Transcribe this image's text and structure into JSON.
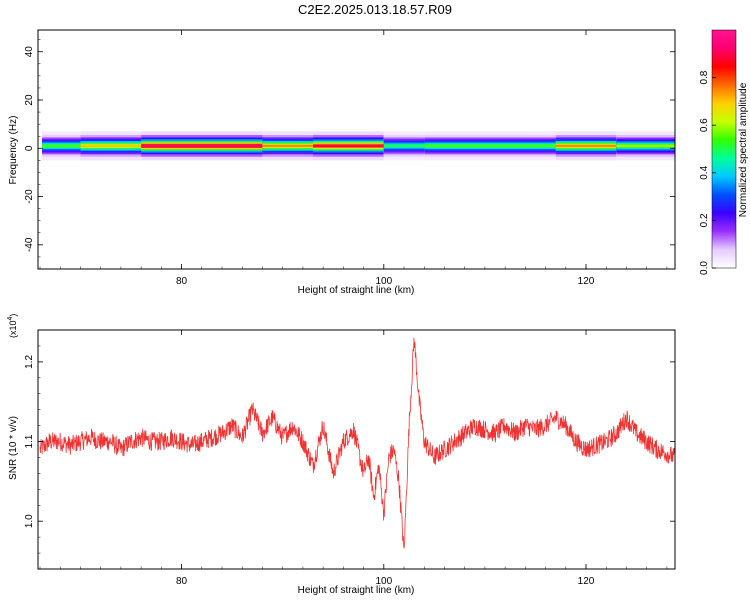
{
  "title": "C2E2.2025.013.18.57.R09",
  "chart_data": [
    {
      "type": "heatmap",
      "name": "spectrogram",
      "xlabel": "Height of straight line (km)",
      "ylabel": "Frequency (Hz)",
      "xlim": [
        65.8,
        128.8
      ],
      "ylim": [
        -50,
        49
      ],
      "x_ticks": [
        80,
        100,
        120
      ],
      "y_ticks": [
        40,
        20,
        0,
        -20,
        -40
      ],
      "colorbar": {
        "label": "Normalized spectral amplitude",
        "range": [
          0.0,
          1.0
        ],
        "ticks": [
          0.0,
          0.2,
          0.4,
          0.6,
          0.8
        ],
        "tick_labels": [
          "0.0",
          "0.2",
          "0.4",
          "0.6",
          "0.8"
        ],
        "colors": [
          "#ffffff",
          "#e6ccff",
          "#9b30ff",
          "#3a00ff",
          "#0050ff",
          "#00c8ff",
          "#00ff9a",
          "#33ff00",
          "#c8ff00",
          "#ffd000",
          "#ff6a00",
          "#ff0000",
          "#ff0070",
          "#ff1493"
        ]
      },
      "band": {
        "center_hz": 1.0,
        "halfwidth_hz": 2.5,
        "segments": [
          {
            "x0": 66.2,
            "x1": 70,
            "peak": 0.55
          },
          {
            "x0": 70,
            "x1": 76,
            "peak": 0.7
          },
          {
            "x0": 76,
            "x1": 88,
            "peak": 0.95
          },
          {
            "x0": 88,
            "x1": 93,
            "peak": 0.75
          },
          {
            "x0": 93,
            "x1": 100,
            "peak": 0.9
          },
          {
            "x0": 100,
            "x1": 104,
            "peak": 0.5
          },
          {
            "x0": 104,
            "x1": 117,
            "peak": 0.55
          },
          {
            "x0": 117,
            "x1": 123,
            "peak": 0.75
          },
          {
            "x0": 123,
            "x1": 128.8,
            "peak": 0.6
          }
        ]
      }
    },
    {
      "type": "line",
      "name": "snr",
      "xlabel": "Height of straight line (km)",
      "ylabel": "SNR (10 * v/v)",
      "y_multiplier": "(x10",
      "y_multiplier_exp": "4",
      "y_multiplier_close": ")",
      "xlim": [
        65.8,
        128.8
      ],
      "ylim": [
        0.94,
        1.24
      ],
      "x_ticks": [
        80,
        100,
        120
      ],
      "y_ticks": [
        1.0,
        1.1,
        1.2
      ],
      "y_tick_labels": [
        "1.0",
        "1.1",
        "1.2"
      ],
      "color": "#ee3333",
      "x": [
        66,
        67,
        68,
        69,
        70,
        71,
        72,
        73,
        74,
        75,
        76,
        77,
        78,
        79,
        80,
        81,
        82,
        83,
        84,
        85,
        86,
        87,
        88,
        89,
        90,
        91,
        92,
        93,
        94,
        95,
        96,
        97,
        98,
        98.5,
        99,
        99.5,
        100,
        100.5,
        101,
        101.5,
        102,
        102.5,
        103,
        103.5,
        104,
        105,
        106,
        107,
        108,
        109,
        110,
        111,
        112,
        113,
        114,
        115,
        116,
        117,
        118,
        119,
        120,
        121,
        122,
        123,
        124,
        125,
        126,
        127,
        128,
        128.8
      ],
      "y": [
        1.09,
        1.1,
        1.1,
        1.095,
        1.1,
        1.105,
        1.1,
        1.1,
        1.09,
        1.1,
        1.105,
        1.1,
        1.1,
        1.105,
        1.1,
        1.095,
        1.1,
        1.105,
        1.11,
        1.12,
        1.105,
        1.14,
        1.11,
        1.13,
        1.105,
        1.12,
        1.1,
        1.07,
        1.12,
        1.06,
        1.1,
        1.115,
        1.06,
        1.08,
        1.03,
        1.07,
        1.01,
        1.08,
        1.09,
        1.05,
        0.96,
        1.12,
        1.23,
        1.15,
        1.1,
        1.08,
        1.09,
        1.1,
        1.11,
        1.12,
        1.115,
        1.11,
        1.12,
        1.11,
        1.12,
        1.115,
        1.12,
        1.13,
        1.12,
        1.1,
        1.09,
        1.095,
        1.1,
        1.11,
        1.13,
        1.11,
        1.1,
        1.09,
        1.085,
        1.08
      ],
      "noise": 0.012
    }
  ]
}
